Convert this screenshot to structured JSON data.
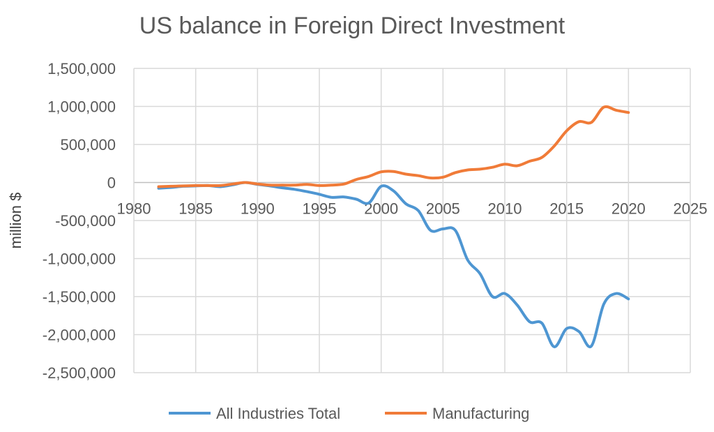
{
  "chart_data": {
    "type": "line",
    "title": "US balance in Foreign Direct Investment",
    "xlabel": "",
    "ylabel": "million $",
    "xlim": [
      1980,
      2025
    ],
    "ylim": [
      -2500000,
      1500000
    ],
    "x_ticks": [
      1980,
      1985,
      1990,
      1995,
      2000,
      2005,
      2010,
      2015,
      2020,
      2025
    ],
    "x_tick_labels": [
      "1980",
      "1985",
      "1990",
      "1995",
      "2000",
      "2005",
      "2010",
      "2015",
      "2020",
      "2025"
    ],
    "y_ticks": [
      1500000,
      1000000,
      500000,
      0,
      -500000,
      -1000000,
      -1500000,
      -2000000,
      -2500000
    ],
    "y_tick_labels": [
      "1,500,000",
      "1,000,000",
      "500,000",
      "0",
      "-500,000",
      "-1,000,000",
      "-1,500,000",
      "-2,000,000",
      "-2,500,000"
    ],
    "grid": true,
    "legend_position": "bottom",
    "x": [
      1982,
      1983,
      1984,
      1985,
      1986,
      1987,
      1988,
      1989,
      1990,
      1991,
      1992,
      1993,
      1994,
      1995,
      1996,
      1997,
      1998,
      1999,
      2000,
      2001,
      2002,
      2003,
      2004,
      2005,
      2006,
      2007,
      2008,
      2009,
      2010,
      2011,
      2012,
      2013,
      2014,
      2015,
      2016,
      2017,
      2018,
      2019,
      2020
    ],
    "series": [
      {
        "name": "All Industries Total",
        "color": "#4e96d2",
        "values": [
          -75000,
          -65000,
          -50000,
          -45000,
          -40000,
          -55000,
          -30000,
          0,
          -25000,
          -45000,
          -70000,
          -90000,
          -120000,
          -155000,
          -195000,
          -190000,
          -220000,
          -270000,
          -50000,
          -110000,
          -280000,
          -370000,
          -630000,
          -610000,
          -630000,
          -1020000,
          -1200000,
          -1500000,
          -1460000,
          -1610000,
          -1830000,
          -1850000,
          -2160000,
          -1920000,
          -1960000,
          -2150000,
          -1600000,
          -1460000,
          -1530000
        ]
      },
      {
        "name": "Manufacturing",
        "color": "#f07b38",
        "values": [
          -55000,
          -50000,
          -45000,
          -40000,
          -40000,
          -40000,
          -20000,
          0,
          -20000,
          -35000,
          -35000,
          -35000,
          -25000,
          -40000,
          -35000,
          -20000,
          40000,
          80000,
          140000,
          145000,
          110000,
          90000,
          60000,
          70000,
          130000,
          165000,
          175000,
          200000,
          240000,
          220000,
          280000,
          330000,
          480000,
          680000,
          800000,
          790000,
          990000,
          950000,
          920000
        ]
      }
    ]
  }
}
